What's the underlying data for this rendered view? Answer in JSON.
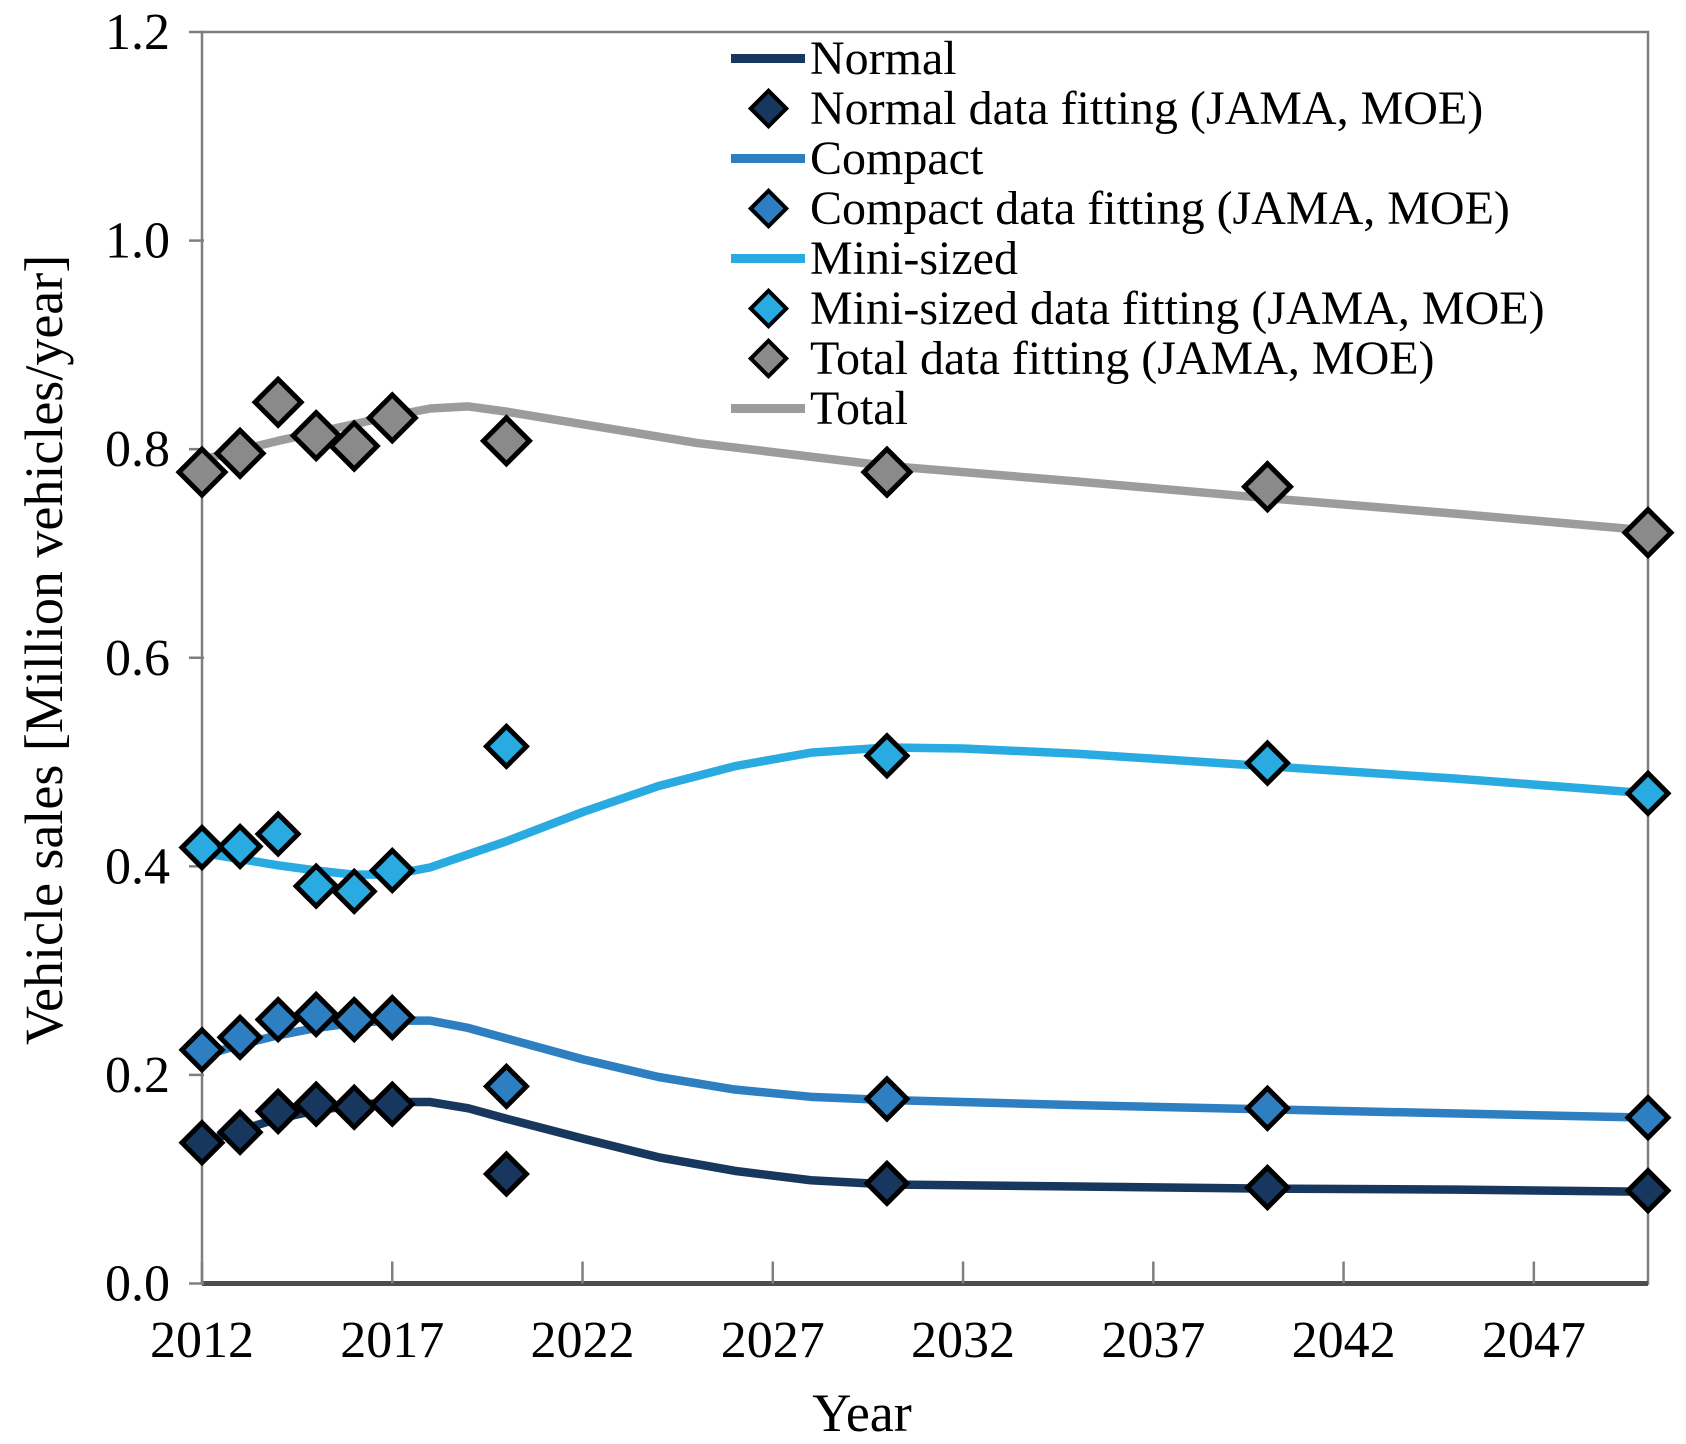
{
  "axes": {
    "x": {
      "label": "Year",
      "tick_labels": [
        "2012",
        "2017",
        "2022",
        "2027",
        "2032",
        "2037",
        "2042",
        "2047"
      ],
      "tick_years": [
        2012,
        2017,
        2022,
        2027,
        2032,
        2037,
        2042,
        2047
      ],
      "range": [
        2012,
        2050
      ]
    },
    "y": {
      "label": "Vehicle sales [Million vehicles/year]",
      "tick_labels": [
        "0.0",
        "0.2",
        "0.4",
        "0.6",
        "0.8",
        "1.0",
        "1.2"
      ],
      "tick_values": [
        0.0,
        0.2,
        0.4,
        0.6,
        0.8,
        1.0,
        1.2
      ],
      "range": [
        0.0,
        1.2
      ]
    }
  },
  "colors": {
    "normal": "#17375e",
    "compact": "#2d7fc1",
    "mini": "#29abe2",
    "total_line": "#9c9c9c",
    "total_marker": "#8a8a8a",
    "marker_outline": "#000000",
    "axis": "#7f7f7f"
  },
  "legend": {
    "items": [
      {
        "label": "Normal",
        "swatch": "line",
        "series": "normal"
      },
      {
        "label": "Normal data fitting (JAMA, MOE)",
        "swatch": "diamond",
        "series": "normal"
      },
      {
        "label": "Compact",
        "swatch": "line",
        "series": "compact"
      },
      {
        "label": "Compact data fitting (JAMA, MOE)",
        "swatch": "diamond",
        "series": "compact"
      },
      {
        "label": "Mini-sized",
        "swatch": "line",
        "series": "mini"
      },
      {
        "label": "Mini-sized data fitting (JAMA, MOE)",
        "swatch": "diamond",
        "series": "mini"
      },
      {
        "label": "Total data fitting (JAMA, MOE)",
        "swatch": "diamond",
        "series": "total_marker"
      },
      {
        "label": "Total",
        "swatch": "line",
        "series": "total_line"
      }
    ]
  },
  "chart_data": {
    "type": "line",
    "title": "",
    "xlabel": "Year",
    "ylabel": "Vehicle sales [Million vehicles/year]",
    "xlim": [
      2012,
      2050
    ],
    "ylim": [
      0.0,
      1.2
    ],
    "grid": false,
    "legend_position": "top-center-inside",
    "series": [
      {
        "name": "Normal",
        "type": "line",
        "color_key": "normal",
        "x": [
          2012,
          2013,
          2014,
          2015,
          2016,
          2017,
          2018,
          2019,
          2020,
          2022,
          2024,
          2026,
          2028,
          2030,
          2035,
          2040,
          2045,
          2050
        ],
        "y": [
          0.135,
          0.147,
          0.158,
          0.166,
          0.171,
          0.174,
          0.174,
          0.168,
          0.158,
          0.139,
          0.121,
          0.108,
          0.099,
          0.095,
          0.093,
          0.091,
          0.09,
          0.088
        ]
      },
      {
        "name": "Normal data fitting (JAMA, MOE)",
        "type": "scatter",
        "marker": "diamond",
        "color_key": "normal",
        "x": [
          2012,
          2013,
          2014,
          2015,
          2016,
          2017,
          2020,
          2030,
          2040,
          2050
        ],
        "y": [
          0.135,
          0.145,
          0.165,
          0.172,
          0.169,
          0.172,
          0.105,
          0.096,
          0.092,
          0.089
        ]
      },
      {
        "name": "Compact",
        "type": "line",
        "color_key": "compact",
        "x": [
          2012,
          2013,
          2014,
          2015,
          2016,
          2017,
          2018,
          2019,
          2020,
          2022,
          2024,
          2026,
          2028,
          2030,
          2035,
          2040,
          2045,
          2050
        ],
        "y": [
          0.218,
          0.229,
          0.238,
          0.245,
          0.25,
          0.252,
          0.252,
          0.245,
          0.235,
          0.215,
          0.198,
          0.186,
          0.179,
          0.176,
          0.171,
          0.167,
          0.163,
          0.159
        ]
      },
      {
        "name": "Compact data fitting (JAMA, MOE)",
        "type": "scatter",
        "marker": "diamond",
        "color_key": "compact",
        "x": [
          2012,
          2013,
          2014,
          2015,
          2016,
          2017,
          2020,
          2030,
          2040,
          2050
        ],
        "y": [
          0.224,
          0.236,
          0.253,
          0.258,
          0.253,
          0.255,
          0.189,
          0.177,
          0.168,
          0.159
        ]
      },
      {
        "name": "Mini-sized",
        "type": "line",
        "color_key": "mini",
        "x": [
          2012,
          2013,
          2014,
          2015,
          2016,
          2017,
          2018,
          2020,
          2022,
          2024,
          2026,
          2028,
          2030,
          2032,
          2035,
          2040,
          2045,
          2050
        ],
        "y": [
          0.413,
          0.407,
          0.401,
          0.396,
          0.392,
          0.392,
          0.399,
          0.424,
          0.452,
          0.477,
          0.496,
          0.509,
          0.514,
          0.513,
          0.508,
          0.496,
          0.484,
          0.47
        ]
      },
      {
        "name": "Mini-sized data fitting (JAMA, MOE)",
        "type": "scatter",
        "marker": "diamond",
        "color_key": "mini",
        "x": [
          2012,
          2013,
          2014,
          2015,
          2016,
          2017,
          2020,
          2030,
          2040,
          2050
        ],
        "y": [
          0.418,
          0.419,
          0.431,
          0.381,
          0.376,
          0.396,
          0.515,
          0.506,
          0.499,
          0.47
        ]
      },
      {
        "name": "Total data fitting (JAMA, MOE)",
        "type": "scatter",
        "marker": "diamond",
        "color_key": "total_marker",
        "x": [
          2012,
          2013,
          2014,
          2015,
          2016,
          2017,
          2020,
          2030,
          2040,
          2050
        ],
        "y": [
          0.778,
          0.796,
          0.845,
          0.813,
          0.803,
          0.83,
          0.808,
          0.778,
          0.764,
          0.72
        ]
      },
      {
        "name": "Total",
        "type": "line",
        "color_key": "total_line",
        "x": [
          2012,
          2013,
          2014,
          2015,
          2016,
          2017,
          2018,
          2019,
          2020,
          2022,
          2025,
          2030,
          2035,
          2040,
          2045,
          2050
        ],
        "y": [
          0.79,
          0.799,
          0.808,
          0.816,
          0.824,
          0.832,
          0.839,
          0.841,
          0.836,
          0.824,
          0.806,
          0.784,
          0.769,
          0.753,
          0.738,
          0.722
        ]
      }
    ]
  }
}
